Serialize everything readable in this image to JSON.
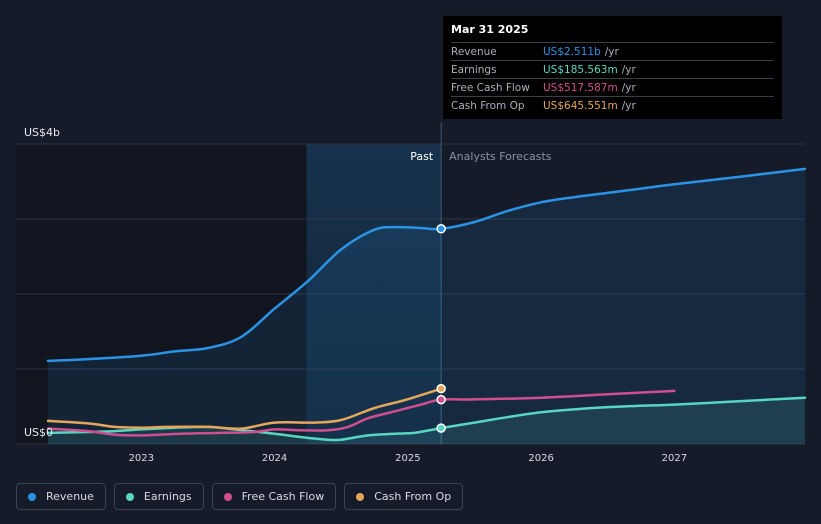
{
  "chart_data": {
    "type": "line",
    "y_unit_label": "US$4b",
    "y_zero_label": "US$0",
    "ylim": [
      0,
      3.5
    ],
    "xlim": [
      2022.3,
      2027.98
    ],
    "x_ticks": [
      {
        "value": 2023,
        "label": "2023"
      },
      {
        "value": 2024,
        "label": "2024"
      },
      {
        "value": 2025,
        "label": "2025"
      },
      {
        "value": 2026,
        "label": "2026"
      },
      {
        "value": 2027,
        "label": "2027"
      }
    ],
    "gridlines": [
      0,
      0.875,
      1.75,
      2.625,
      3.5
    ],
    "past_label": "Past",
    "forecast_label": "Analysts Forecasts",
    "forecast_start": 2025.25,
    "highlight_start": 2024.24,
    "series": [
      {
        "name": "Revenue",
        "color": "#2b93e6",
        "area": true,
        "points": [
          [
            2022.3,
            0.97
          ],
          [
            2022.6,
            0.99
          ],
          [
            2023.0,
            1.03
          ],
          [
            2023.25,
            1.08
          ],
          [
            2023.5,
            1.12
          ],
          [
            2023.75,
            1.25
          ],
          [
            2024.0,
            1.58
          ],
          [
            2024.25,
            1.9
          ],
          [
            2024.5,
            2.27
          ],
          [
            2024.75,
            2.5
          ],
          [
            2024.92,
            2.53
          ],
          [
            2025.1,
            2.52
          ],
          [
            2025.25,
            2.511
          ],
          [
            2025.5,
            2.59
          ],
          [
            2025.75,
            2.72
          ],
          [
            2026.0,
            2.82
          ],
          [
            2026.25,
            2.88
          ],
          [
            2026.5,
            2.93
          ],
          [
            2026.75,
            2.98
          ],
          [
            2027.0,
            3.03
          ],
          [
            2027.5,
            3.12
          ],
          [
            2027.98,
            3.21
          ]
        ]
      },
      {
        "name": "Earnings",
        "color": "#58d6c2",
        "area": true,
        "points": [
          [
            2022.3,
            0.13
          ],
          [
            2022.6,
            0.14
          ],
          [
            2022.8,
            0.15
          ],
          [
            2023.0,
            0.17
          ],
          [
            2023.25,
            0.19
          ],
          [
            2023.5,
            0.2
          ],
          [
            2023.7,
            0.17
          ],
          [
            2024.0,
            0.12
          ],
          [
            2024.2,
            0.08
          ],
          [
            2024.4,
            0.05
          ],
          [
            2024.5,
            0.05
          ],
          [
            2024.7,
            0.1
          ],
          [
            2024.9,
            0.12
          ],
          [
            2025.05,
            0.13
          ],
          [
            2025.25,
            0.1856
          ],
          [
            2025.5,
            0.25
          ],
          [
            2026.0,
            0.37
          ],
          [
            2026.5,
            0.43
          ],
          [
            2027.0,
            0.46
          ],
          [
            2027.5,
            0.5
          ],
          [
            2027.98,
            0.54
          ]
        ]
      },
      {
        "name": "Free Cash Flow",
        "color": "#d14f8f",
        "area": false,
        "points": [
          [
            2022.3,
            0.18
          ],
          [
            2022.6,
            0.15
          ],
          [
            2022.8,
            0.11
          ],
          [
            2023.0,
            0.1
          ],
          [
            2023.3,
            0.12
          ],
          [
            2023.6,
            0.13
          ],
          [
            2023.85,
            0.14
          ],
          [
            2024.0,
            0.17
          ],
          [
            2024.2,
            0.16
          ],
          [
            2024.4,
            0.16
          ],
          [
            2024.55,
            0.2
          ],
          [
            2024.7,
            0.3
          ],
          [
            2024.9,
            0.38
          ],
          [
            2025.1,
            0.46
          ],
          [
            2025.25,
            0.5176
          ],
          [
            2025.5,
            0.52
          ],
          [
            2026.0,
            0.54
          ],
          [
            2026.5,
            0.58
          ],
          [
            2027.0,
            0.62
          ]
        ]
      },
      {
        "name": "Cash From Op",
        "color": "#e5a65c",
        "area": false,
        "points": [
          [
            2022.3,
            0.27
          ],
          [
            2022.6,
            0.24
          ],
          [
            2022.8,
            0.2
          ],
          [
            2023.0,
            0.19
          ],
          [
            2023.2,
            0.2
          ],
          [
            2023.5,
            0.2
          ],
          [
            2023.75,
            0.18
          ],
          [
            2024.0,
            0.25
          ],
          [
            2024.3,
            0.25
          ],
          [
            2024.5,
            0.28
          ],
          [
            2024.75,
            0.42
          ],
          [
            2024.95,
            0.5
          ],
          [
            2025.1,
            0.57
          ],
          [
            2025.25,
            0.6456
          ]
        ]
      }
    ]
  },
  "tooltip": {
    "date": "Mar 31 2025",
    "rows": [
      {
        "label": "Revenue",
        "value": "US$2.511b",
        "unit": "/yr",
        "color": "#2b93e6"
      },
      {
        "label": "Earnings",
        "value": "US$185.563m",
        "unit": "/yr",
        "color": "#58d6c2"
      },
      {
        "label": "Free Cash Flow",
        "value": "US$517.587m",
        "unit": "/yr",
        "color": "#d14f8f"
      },
      {
        "label": "Cash From Op",
        "value": "US$645.551m",
        "unit": "/yr",
        "color": "#e5a65c"
      }
    ]
  },
  "legend": [
    {
      "label": "Revenue",
      "color": "#2b93e6"
    },
    {
      "label": "Earnings",
      "color": "#58d6c2"
    },
    {
      "label": "Free Cash Flow",
      "color": "#d14f8f"
    },
    {
      "label": "Cash From Op",
      "color": "#e5a65c"
    }
  ]
}
